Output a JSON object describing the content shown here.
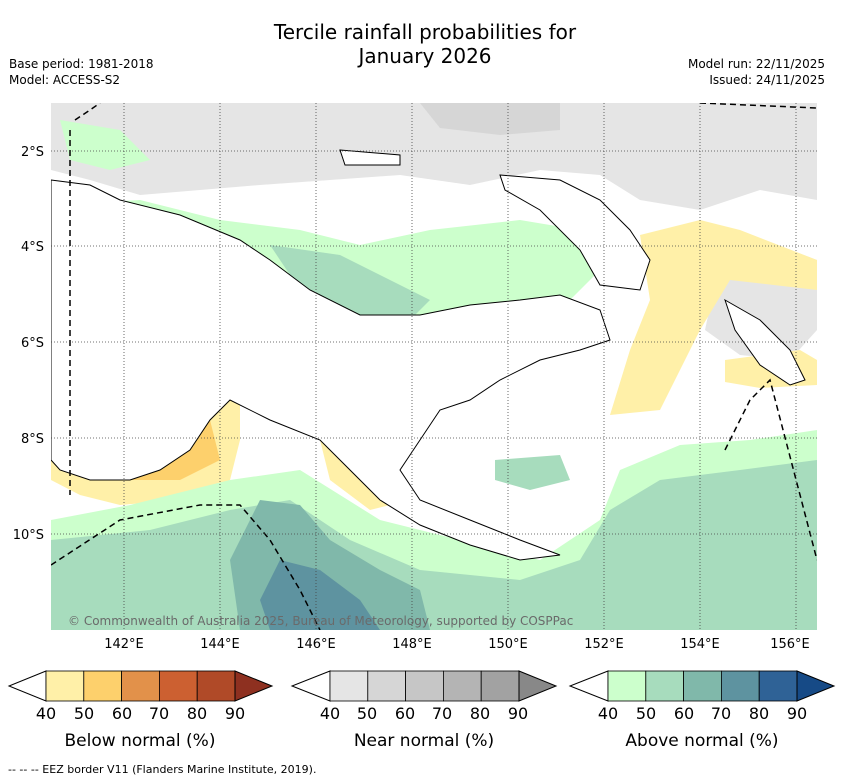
{
  "header": {
    "title_line1": "Tercile rainfall probabilities for",
    "title_line2": "January 2026",
    "base_period": "Base period: 1981-2018",
    "model": "Model: ACCESS-S2",
    "model_run": "Model run: 22/11/2025",
    "issued": "Issued: 24/11/2025"
  },
  "map": {
    "lat_labels": [
      "2°S",
      "4°S",
      "6°S",
      "8°S",
      "10°S"
    ],
    "lon_labels": [
      "142°E",
      "144°E",
      "146°E",
      "148°E",
      "150°E",
      "152°E",
      "154°E",
      "156°E"
    ],
    "copyright": "© Commonwealth of Australia 2025, Bureau of Meteorology, supported by COSPPac"
  },
  "colorbars": {
    "ticks": [
      "40",
      "50",
      "60",
      "70",
      "80",
      "90"
    ],
    "below": {
      "label": "Below normal (%)",
      "colors": [
        "#fff0a8",
        "#fdd06c",
        "#e2914a",
        "#cc6031",
        "#b04a28",
        "#8e3020"
      ]
    },
    "near": {
      "label": "Near normal (%)",
      "colors": [
        "#e5e5e5",
        "#d6d6d6",
        "#c6c6c6",
        "#b4b4b4",
        "#a2a2a2",
        "#888888"
      ]
    },
    "above": {
      "label": "Above normal (%)",
      "colors": [
        "#ccffcc",
        "#a7dcbd",
        "#80b8aa",
        "#5e93a0",
        "#2f6296",
        "#164a86"
      ]
    }
  },
  "footer": {
    "eez_note": "--  --  -- EEZ border V11 (Flanders Marine Institute, 2019)."
  }
}
